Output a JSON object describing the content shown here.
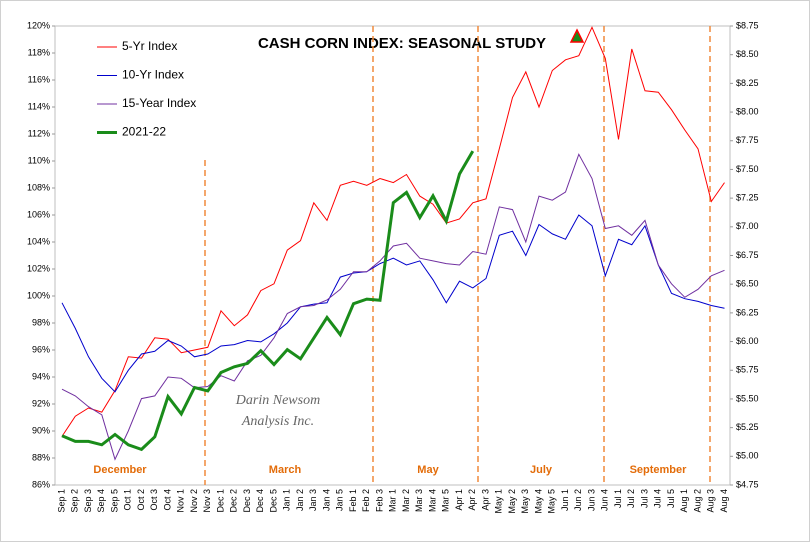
{
  "chart_data": {
    "type": "line",
    "title": "CASH CORN INDEX: SEASONAL STUDY",
    "annotations": [
      "December",
      "March",
      "May",
      "July",
      "September"
    ],
    "watermark": [
      "Darin Newsom",
      "Analysis Inc."
    ],
    "categories": [
      "Sep 1",
      "Sep 2",
      "Sep 3",
      "Sep 4",
      "Sep 5",
      "Oct 1",
      "Oct 2",
      "Oct 3",
      "Oct 4",
      "Nov 1",
      "Nov 2",
      "Nov 3",
      "Dec 1",
      "Dec 2",
      "Dec 3",
      "Dec 4",
      "Dec 5",
      "Jan 1",
      "Jan 2",
      "Jan 3",
      "Jan 4",
      "Jan 5",
      "Feb 1",
      "Feb 2",
      "Feb 3",
      "Mar 1",
      "Mar 2",
      "Mar 3",
      "Mar 4",
      "Mar 5",
      "Apr 1",
      "Apr 2",
      "Apr 3",
      "May 1",
      "May 2",
      "May 3",
      "May 4",
      "May 5",
      "Jun 1",
      "Jun 2",
      "Jun 3",
      "Jun 4",
      "Jul 1",
      "Jul 2",
      "Jul 3",
      "Jul 4",
      "Jul 5",
      "Aug 1",
      "Aug 2",
      "Aug 3",
      "Aug 4"
    ],
    "series": [
      {
        "name": "5-Yr Index",
        "color": "#ff0000",
        "values": [
          89.6,
          91.1,
          91.7,
          91.4,
          93.0,
          95.5,
          95.4,
          96.9,
          96.8,
          95.8,
          96.0,
          96.2,
          98.9,
          97.8,
          98.6,
          100.4,
          100.9,
          103.4,
          104.1,
          106.9,
          105.6,
          108.2,
          108.5,
          108.2,
          108.7,
          108.4,
          109.0,
          107.4,
          106.8,
          105.4,
          105.7,
          106.9,
          107.2,
          110.9,
          114.7,
          116.6,
          114.0,
          116.7,
          117.5,
          117.8,
          119.9,
          117.6,
          111.6,
          118.3,
          115.2,
          115.1,
          113.8,
          112.3,
          110.9,
          107.0,
          108.4
        ]
      },
      {
        "name": "10-Yr Index",
        "color": "#0000cc",
        "values": [
          99.5,
          97.6,
          95.5,
          93.9,
          92.9,
          94.5,
          95.7,
          95.9,
          96.7,
          96.3,
          95.5,
          95.7,
          96.3,
          96.4,
          96.7,
          96.6,
          97.2,
          98.0,
          99.2,
          99.4,
          99.5,
          101.4,
          101.7,
          101.8,
          102.4,
          102.8,
          102.3,
          102.6,
          101.2,
          99.5,
          101.1,
          100.6,
          101.3,
          104.5,
          104.8,
          103.0,
          105.3,
          104.6,
          104.2,
          106.0,
          105.2,
          101.5,
          104.2,
          103.8,
          105.2,
          102.3,
          100.2,
          99.8,
          99.6,
          99.3,
          99.1
        ]
      },
      {
        "name": "15-Year Index",
        "color": "#7030a0",
        "values": [
          93.1,
          92.6,
          91.8,
          91.2,
          87.9,
          90.0,
          92.4,
          92.6,
          94.0,
          93.9,
          93.2,
          93.3,
          94.1,
          93.7,
          95.2,
          95.6,
          96.9,
          98.7,
          99.2,
          99.3,
          99.7,
          100.5,
          101.8,
          101.8,
          102.6,
          103.7,
          103.9,
          102.8,
          102.6,
          102.4,
          102.3,
          103.3,
          103.1,
          106.6,
          106.4,
          104.0,
          107.4,
          107.1,
          107.7,
          110.5,
          108.7,
          105.0,
          105.2,
          104.5,
          105.6,
          102.3,
          100.9,
          99.9,
          100.5,
          101.5,
          101.9
        ]
      },
      {
        "name": "2021-22",
        "color": "#1a8c1a",
        "axis": "y2",
        "values": [
          5.18,
          5.13,
          5.13,
          5.1,
          5.19,
          5.1,
          5.06,
          5.17,
          5.52,
          5.37,
          5.6,
          5.57,
          5.73,
          5.78,
          5.81,
          5.92,
          5.8,
          5.93,
          5.85,
          6.03,
          6.21,
          6.06,
          6.33,
          6.37,
          6.36,
          7.21,
          7.3,
          7.08,
          7.27,
          7.05,
          7.46,
          7.66,
          null,
          null,
          null,
          null,
          null,
          null,
          null,
          null,
          null,
          null,
          null,
          null,
          null,
          null,
          null,
          null,
          null,
          null,
          null
        ]
      }
    ],
    "ylim": [
      86,
      120
    ],
    "yticks": [
      {
        "value": 86,
        "label": "86%"
      },
      {
        "value": 88,
        "label": "88%"
      },
      {
        "value": 90,
        "label": "90%"
      },
      {
        "value": 92,
        "label": "92%"
      },
      {
        "value": 94,
        "label": "94%"
      },
      {
        "value": 96,
        "label": "96%"
      },
      {
        "value": 98,
        "label": "98%"
      },
      {
        "value": 100,
        "label": "100%"
      },
      {
        "value": 102,
        "label": "102%"
      },
      {
        "value": 104,
        "label": "104%"
      },
      {
        "value": 106,
        "label": "106%"
      },
      {
        "value": 108,
        "label": "108%"
      },
      {
        "value": 110,
        "label": "110%"
      },
      {
        "value": 112,
        "label": "112%"
      },
      {
        "value": 114,
        "label": "114%"
      },
      {
        "value": 116,
        "label": "116%"
      },
      {
        "value": 118,
        "label": "118%"
      },
      {
        "value": 120,
        "label": "120%"
      }
    ],
    "y2lim": [
      4.75,
      8.75
    ],
    "y2ticks": [
      {
        "value": 4.75,
        "label": "$4.75"
      },
      {
        "value": 5,
        "label": "$5.00"
      },
      {
        "value": 5.25,
        "label": "$5.25"
      },
      {
        "value": 5.5,
        "label": "$5.50"
      },
      {
        "value": 5.75,
        "label": "$5.75"
      },
      {
        "value": 6,
        "label": "$6.00"
      },
      {
        "value": 6.25,
        "label": "$6.25"
      },
      {
        "value": 6.5,
        "label": "$6.50"
      },
      {
        "value": 6.75,
        "label": "$6.75"
      },
      {
        "value": 7,
        "label": "$7.00"
      },
      {
        "value": 7.25,
        "label": "$7.25"
      },
      {
        "value": 7.5,
        "label": "$7.50"
      },
      {
        "value": 7.75,
        "label": "$7.75"
      },
      {
        "value": 8,
        "label": "$8.00"
      },
      {
        "value": 8.25,
        "label": "$8.25"
      },
      {
        "value": 8.5,
        "label": "$8.50"
      },
      {
        "value": 8.75,
        "label": "$8.75"
      }
    ],
    "grid": false,
    "legend": "top-left"
  }
}
